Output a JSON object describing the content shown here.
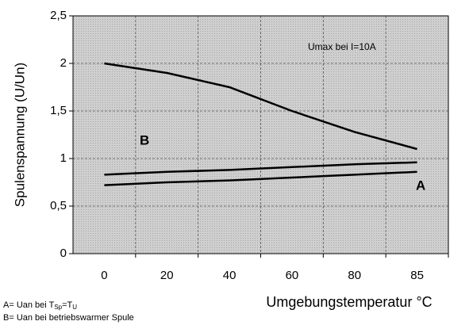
{
  "chart_data": {
    "type": "line",
    "y_label": "Spulenspannung (U/Un)",
    "x_label": "Umgebungstemperatur °C",
    "categories": [
      "0",
      "20",
      "40",
      "60",
      "80",
      "85"
    ],
    "series": [
      {
        "color": "#000000",
        "values": [
          2.0,
          1.9,
          1.75,
          1.5,
          1.28,
          1.1
        ]
      },
      {
        "color": "#000000",
        "values": [
          0.83,
          0.86,
          0.88,
          0.91,
          0.94,
          0.96
        ]
      },
      {
        "color": "#000000",
        "values": [
          0.72,
          0.75,
          0.77,
          0.8,
          0.83,
          0.86
        ]
      }
    ],
    "ylim": [
      0,
      2.5
    ],
    "yticks": [
      0,
      {
        "value": 0.5,
        "label": "0,5"
      },
      1,
      {
        "value": 1.5,
        "label": "1,5"
      },
      2,
      {
        "value": 2.5,
        "label": "2,5"
      }
    ],
    "grid": true,
    "annotations": [
      "Umax bei I=10A",
      "B",
      "A"
    ],
    "notes": [
      [
        "A= Uan bei T",
        "Sp",
        "=T",
        "U"
      ],
      [
        "B= Uan bei betriebswarmer Spule"
      ]
    ]
  }
}
